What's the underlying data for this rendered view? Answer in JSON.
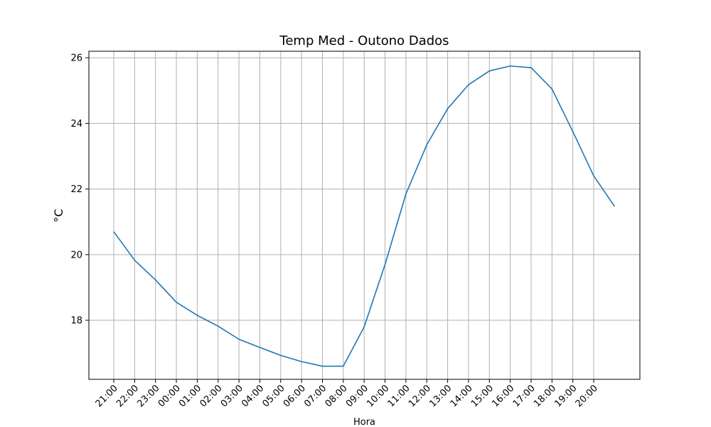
{
  "chart_data": {
    "type": "line",
    "title": "Temp Med - Outono Dados",
    "xlabel": "Hora",
    "ylabel": "°C",
    "x_tick_labels": [
      "21:00",
      "22:00",
      "23:00",
      "00:00",
      "01:00",
      "02:00",
      "03:00",
      "04:00",
      "05:00",
      "06:00",
      "07:00",
      "08:00",
      "09:00",
      "10:00",
      "11:00",
      "12:00",
      "13:00",
      "14:00",
      "15:00",
      "16:00",
      "17:00",
      "18:00",
      "19:00",
      "20:00"
    ],
    "y_ticks": [
      18,
      20,
      22,
      24,
      26
    ],
    "ylim": [
      16.2,
      26.2
    ],
    "grid": true,
    "color": "#1f77b4",
    "series": [
      {
        "values": [
          20.7,
          19.83,
          19.23,
          18.55,
          18.15,
          17.82,
          17.42,
          17.17,
          16.93,
          16.74,
          16.6,
          16.6,
          17.8,
          19.7,
          21.85,
          23.35,
          24.45,
          25.18,
          25.6,
          25.75,
          25.7,
          25.05,
          23.75,
          22.4,
          21.47
        ]
      }
    ]
  }
}
